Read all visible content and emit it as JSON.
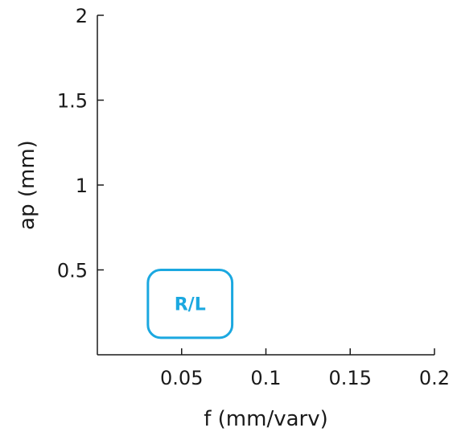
{
  "chart_data": {
    "type": "scatter",
    "title": "",
    "xlabel": "f (mm/varv)",
    "ylabel": "ap (mm)",
    "xlim": [
      0,
      0.2
    ],
    "ylim": [
      0,
      2
    ],
    "x_ticks": [
      0.05,
      0.1,
      0.15,
      0.2
    ],
    "x_tick_labels": [
      "0.05",
      "0.1",
      "0.15",
      "0.2"
    ],
    "y_ticks": [
      0.5,
      1,
      1.5,
      2
    ],
    "y_tick_labels": [
      "0.5",
      "1",
      "1.5",
      "2"
    ],
    "grid": false,
    "regions": [
      {
        "label": "R/L",
        "x_range": [
          0.03,
          0.08
        ],
        "y_range": [
          0.1,
          0.5
        ],
        "color": "#1ba8e0"
      }
    ]
  }
}
